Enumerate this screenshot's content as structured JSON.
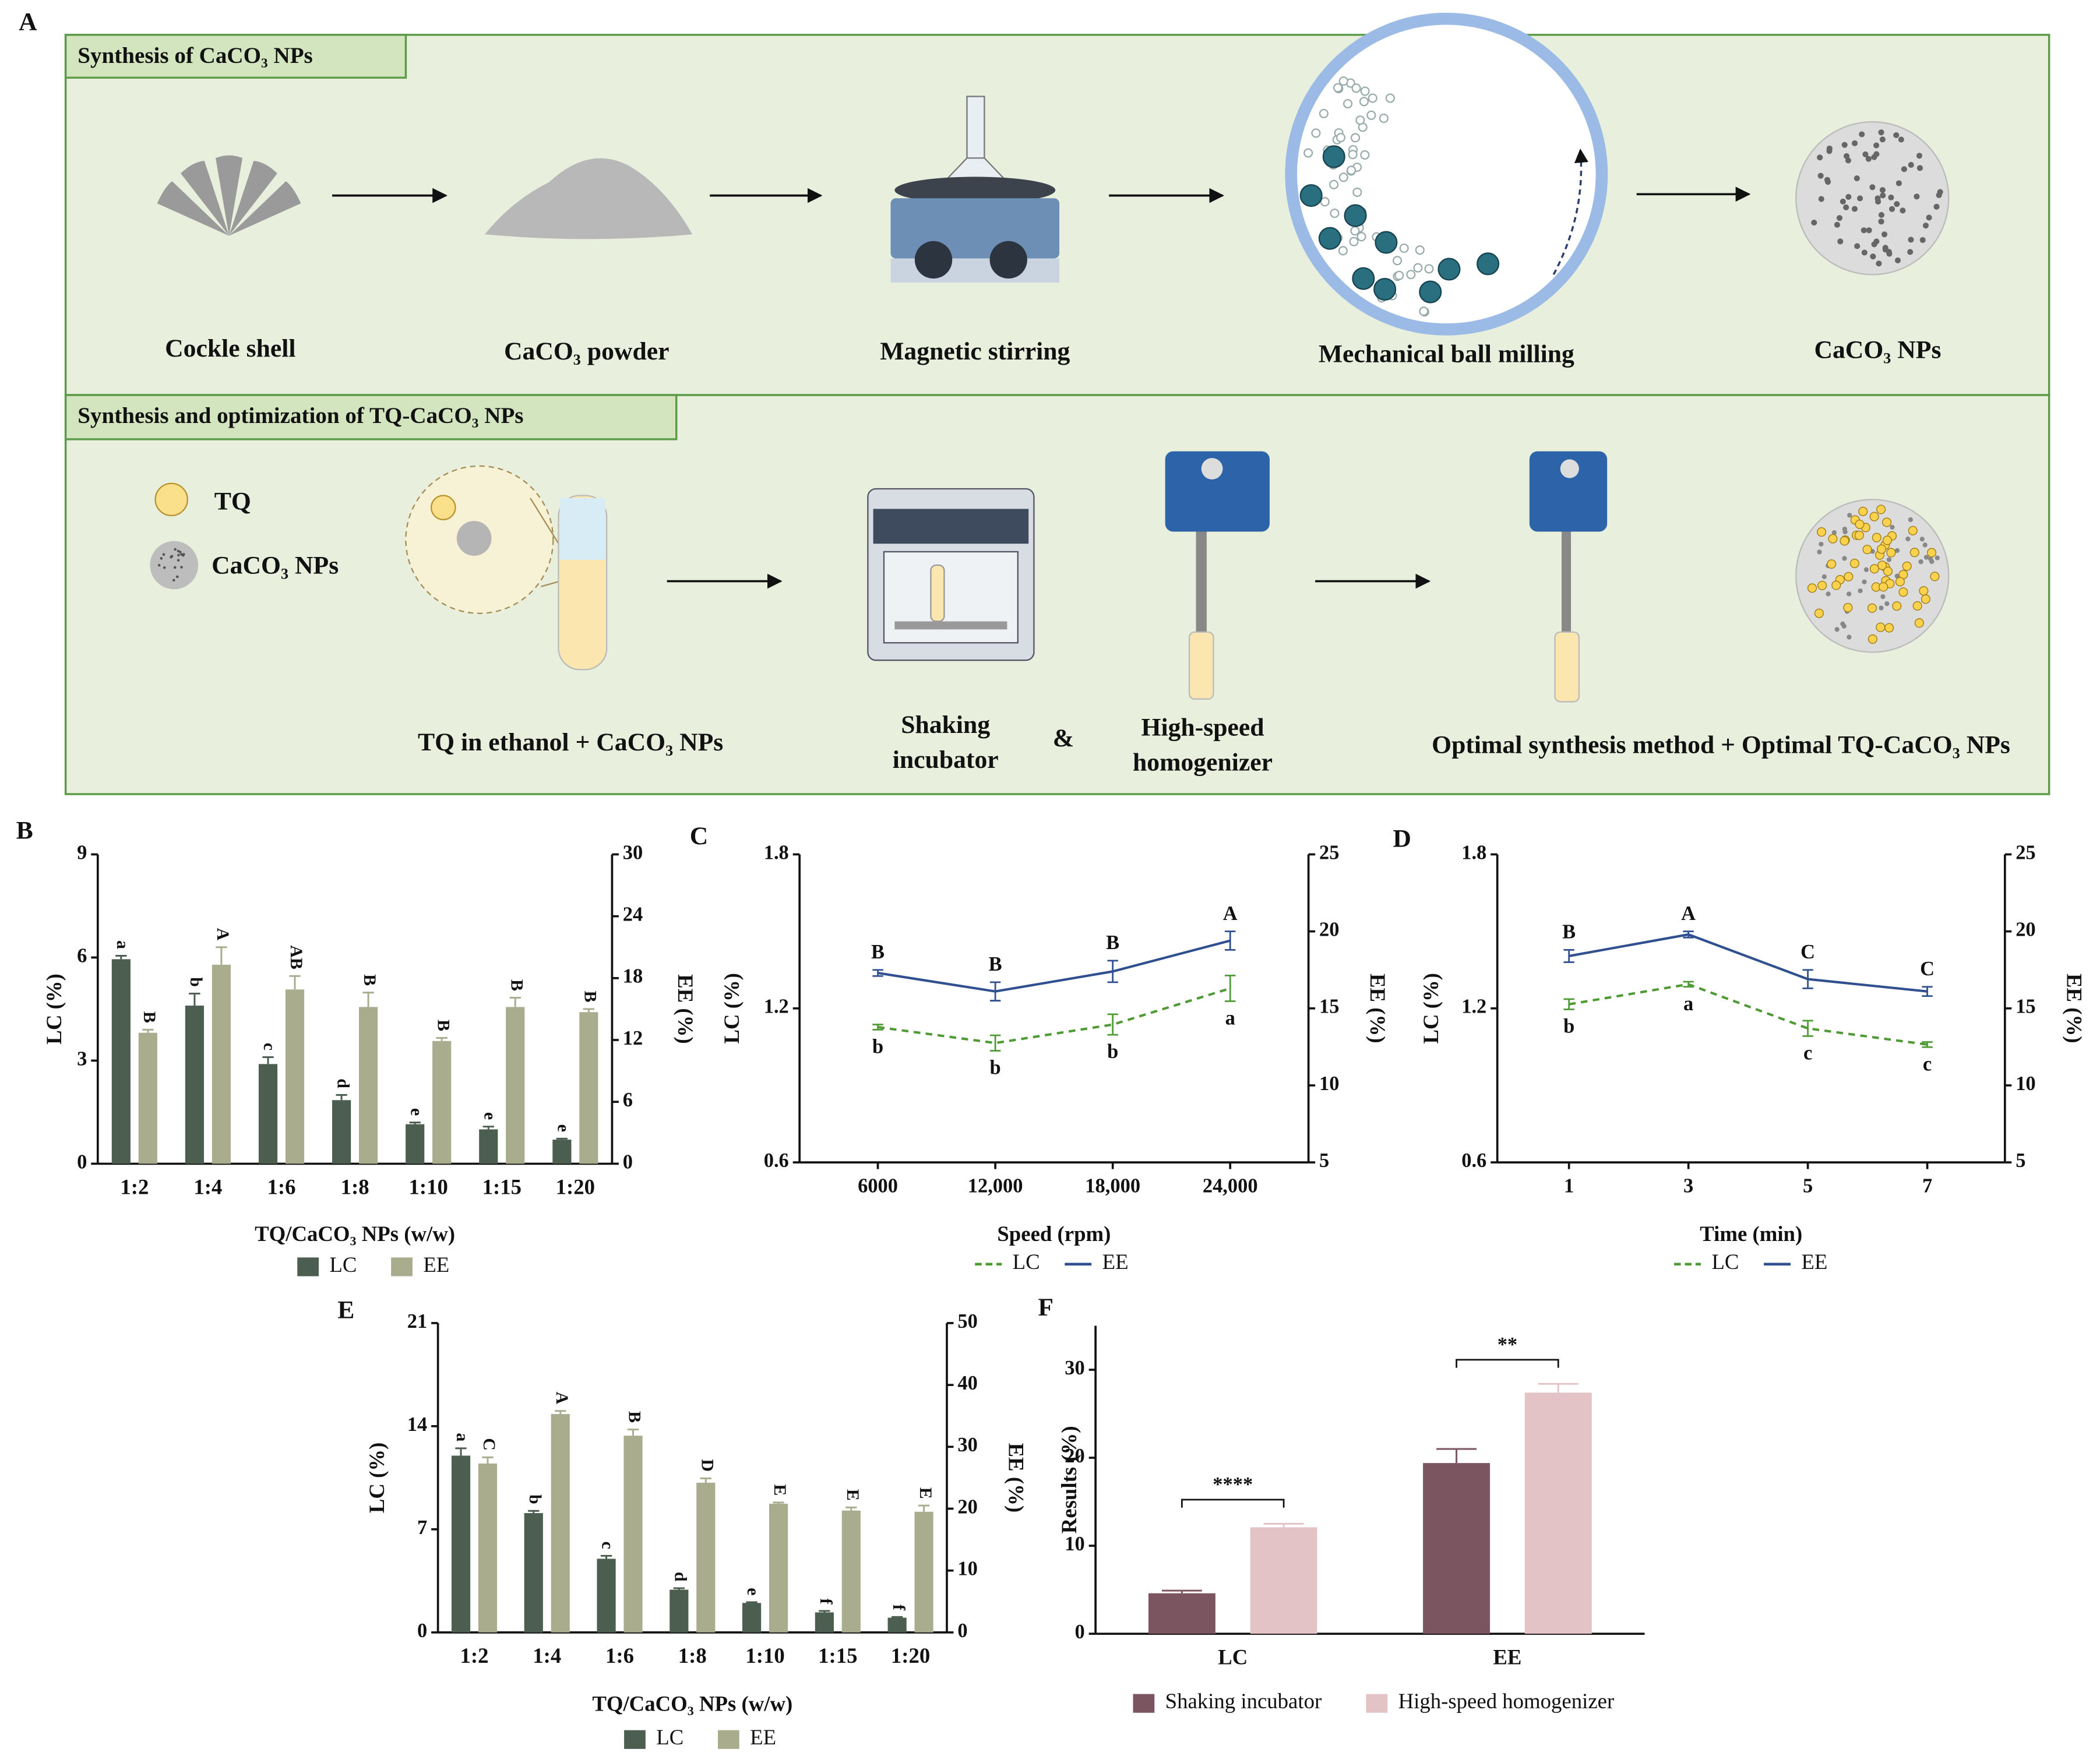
{
  "panel_labels": [
    "A",
    "B",
    "C",
    "D",
    "E",
    "F"
  ],
  "diagram": {
    "section1": {
      "title": "Synthesis of CaCO₃ NPs",
      "steps": [
        "Cockle shell",
        "CaCO₃ powder",
        "Magnetic stirring",
        "Mechanical ball milling",
        "CaCO₃ NPs"
      ]
    },
    "section2": {
      "title": "Synthesis and optimization of TQ-CaCO₃ NPs",
      "legend": [
        "TQ",
        "CaCO₃ NPs"
      ],
      "steps": [
        "TQ in ethanol + CaCO₃ NPs",
        [
          "Shaking",
          "incubator"
        ],
        "&",
        [
          "High-speed",
          "homogenizer"
        ],
        "Optimal synthesis method + Optimal TQ-CaCO₃ NPs"
      ]
    }
  },
  "chart_data": [
    {
      "type": "bar",
      "xlabel": "TQ/CaCO₃ NPs (w/w)",
      "ylabel": "LC (%)",
      "y2label": "EE (%)",
      "categories": [
        "1:2",
        "1:4",
        "1:6",
        "1:8",
        "1:10",
        "1:15",
        "1:20"
      ],
      "ylim": [
        0,
        9
      ],
      "yticks": [
        0,
        3,
        6,
        9
      ],
      "y2lim": [
        0,
        30
      ],
      "y2ticks": [
        0,
        6,
        12,
        18,
        24,
        30
      ],
      "series": [
        {
          "name": "LC",
          "color": "#4b5e4f",
          "values": [
            5.95,
            4.6,
            2.9,
            1.85,
            1.15,
            1.0,
            0.7
          ],
          "errors": [
            0.1,
            0.35,
            0.2,
            0.15,
            0.05,
            0.08,
            0.03
          ],
          "letters": [
            "a",
            "b",
            "c",
            "d",
            "e",
            "e",
            "e"
          ]
        },
        {
          "name": "EE",
          "axis": "y2",
          "color": "#a9ad8e",
          "values": [
            12.7,
            19.3,
            16.9,
            15.2,
            11.9,
            15.2,
            14.7
          ],
          "errors": [
            0.3,
            1.7,
            1.3,
            1.4,
            0.3,
            0.9,
            0.3
          ],
          "letters": [
            "B",
            "A",
            "AB",
            "B",
            "B",
            "B",
            "B"
          ]
        }
      ]
    },
    {
      "type": "line",
      "xlabel": "Speed (rpm)",
      "ylabel": "LC (%)",
      "y2label": "EE (%)",
      "x": [
        6000,
        12000,
        18000,
        24000
      ],
      "xlim": [
        2000,
        28000
      ],
      "xticks": [
        6000,
        {
          "value": 12000,
          "label": "12,000"
        },
        {
          "value": 18000,
          "label": "18,000"
        },
        {
          "value": 24000,
          "label": "24,000"
        }
      ],
      "ylim": [
        0.6,
        1.8
      ],
      "yticks": [
        0.6,
        1.2,
        1.8
      ],
      "y2lim": [
        5,
        25
      ],
      "y2ticks": [
        5,
        10,
        15,
        20,
        25
      ],
      "series": [
        {
          "name": "LC",
          "color": "#4e9a35",
          "line_style": "dashed",
          "values": [
            1.127,
            1.065,
            1.137,
            1.278
          ],
          "errors": [
            0.01,
            0.03,
            0.04,
            0.05
          ],
          "letters": [
            "b",
            "b",
            "b",
            "a"
          ]
        },
        {
          "name": "EE",
          "axis": "y2",
          "color": "#2f4f8f",
          "line_style": "solid",
          "values": [
            17.3,
            16.1,
            17.4,
            19.4
          ],
          "errors": [
            0.2,
            0.6,
            0.7,
            0.6
          ],
          "letters": [
            "B",
            "B",
            "B",
            "A"
          ]
        }
      ]
    },
    {
      "type": "line",
      "xlabel": "Time (min)",
      "ylabel": "LC (%)",
      "y2label": "EE (%)",
      "x": [
        1,
        3,
        5,
        7
      ],
      "xlim": [
        -0.2,
        8.3
      ],
      "xticks": [
        1,
        3,
        5,
        7
      ],
      "ylim": [
        0.6,
        1.8
      ],
      "yticks": [
        0.6,
        1.2,
        1.8
      ],
      "y2lim": [
        5,
        25
      ],
      "y2ticks": [
        5,
        10,
        15,
        20,
        25
      ],
      "series": [
        {
          "name": "LC",
          "color": "#4e9a35",
          "line_style": "dashed",
          "values": [
            1.216,
            1.294,
            1.122,
            1.059
          ],
          "errors": [
            0.02,
            0.01,
            0.03,
            0.01
          ],
          "letters": [
            "b",
            "a",
            "c",
            "c"
          ]
        },
        {
          "name": "EE",
          "axis": "y2",
          "color": "#2f4f8f",
          "line_style": "solid",
          "values": [
            18.4,
            19.8,
            16.9,
            16.1
          ],
          "errors": [
            0.4,
            0.2,
            0.6,
            0.3
          ],
          "letters": [
            "B",
            "A",
            "C",
            "C"
          ]
        }
      ]
    },
    {
      "type": "bar",
      "xlabel": "TQ/CaCO₃ NPs (w/w)",
      "ylabel": "LC (%)",
      "y2label": "EE (%)",
      "categories": [
        "1:2",
        "1:4",
        "1:6",
        "1:8",
        "1:10",
        "1:15",
        "1:20"
      ],
      "ylim": [
        0,
        21
      ],
      "yticks": [
        0,
        7,
        14,
        21
      ],
      "y2lim": [
        0,
        50
      ],
      "y2ticks": [
        0,
        10,
        20,
        30,
        40,
        50
      ],
      "series": [
        {
          "name": "LC",
          "color": "#4b5e4f",
          "values": [
            12.0,
            8.1,
            5.0,
            2.9,
            2.0,
            1.36,
            1.0
          ],
          "errors": [
            0.5,
            0.15,
            0.2,
            0.1,
            0.05,
            0.1,
            0.05
          ],
          "letters": [
            "a",
            "b",
            "c",
            "d",
            "e",
            "f",
            "f"
          ]
        },
        {
          "name": "EE",
          "axis": "y2",
          "color": "#a9ad8e",
          "values": [
            27.3,
            35.3,
            31.8,
            24.2,
            20.8,
            19.7,
            19.5
          ],
          "errors": [
            1.0,
            0.5,
            1.0,
            0.7,
            0.2,
            0.5,
            1.0
          ],
          "letters": [
            "C",
            "A",
            "B",
            "D",
            "E",
            "E",
            "E"
          ]
        }
      ]
    },
    {
      "type": "bar",
      "ylabel": "Results (%)",
      "categories": [
        "LC",
        "EE"
      ],
      "ylim": [
        0,
        35
      ],
      "yticks": [
        0,
        10,
        20,
        30
      ],
      "significance": [
        "****",
        "**"
      ],
      "series": [
        {
          "name": "Shaking incubator",
          "color": "#7b5560",
          "values": [
            4.6,
            19.4
          ],
          "errors": [
            0.3,
            1.6
          ]
        },
        {
          "name": "High-speed homogenizer",
          "color": "#e4c3c7",
          "values": [
            12.1,
            27.4
          ],
          "errors": [
            0.4,
            1.0
          ]
        }
      ]
    }
  ]
}
